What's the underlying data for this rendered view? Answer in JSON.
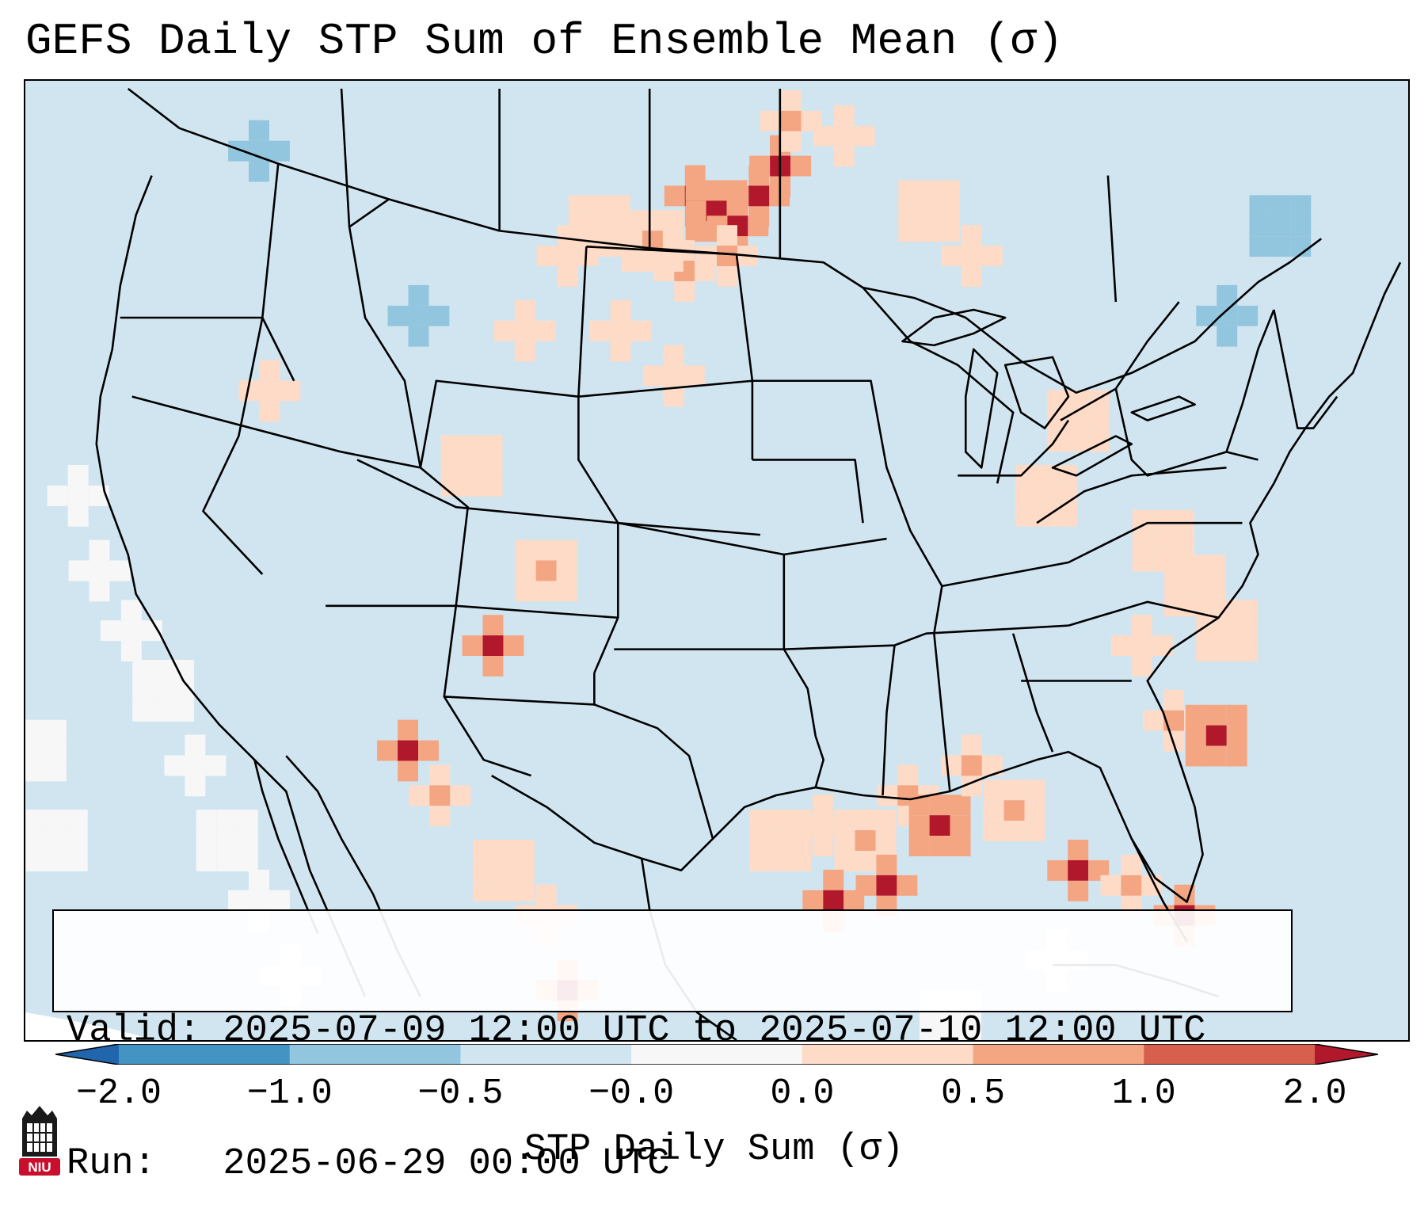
{
  "title": "GEFS Daily STP Sum of Ensemble Mean (σ)",
  "info": {
    "valid": "Valid: 2025-07-09 12:00 UTC to 2025-07-10 12:00 UTC",
    "run": "Run:   2025-06-29 00:00 UTC"
  },
  "colorbar": {
    "label": "STP Daily Sum (σ)",
    "ticks": [
      "−2.0",
      "−1.0",
      "−0.5",
      "−0.0",
      "0.0",
      "0.5",
      "1.0",
      "2.0"
    ],
    "colors": [
      "#2166ac",
      "#4393c3",
      "#92c5de",
      "#d1e5f0",
      "#f7f7f7",
      "#fddbc7",
      "#f4a582",
      "#d6604d",
      "#b2182b"
    ]
  },
  "logo": {
    "text": "NIU",
    "color": "#c8102e"
  },
  "map": {
    "land_fill": "#d1e5f0",
    "outline_color": "#000000",
    "anomaly_cells": [
      {
        "lon": -97.0,
        "lat": 48.5,
        "level": 3
      },
      {
        "lon": -96.0,
        "lat": 48.0,
        "level": 3
      },
      {
        "lon": -95.0,
        "lat": 47.5,
        "level": 3
      },
      {
        "lon": -94.0,
        "lat": 48.5,
        "level": 3
      },
      {
        "lon": -93.0,
        "lat": 49.5,
        "level": 3
      },
      {
        "lon": -95.5,
        "lat": 46.5,
        "level": 2
      },
      {
        "lon": -97.5,
        "lat": 46.0,
        "level": 2
      },
      {
        "lon": -99.0,
        "lat": 47.0,
        "level": 2
      },
      {
        "lon": -101.5,
        "lat": 47.5,
        "level": 1
      },
      {
        "lon": -103.0,
        "lat": 46.5,
        "level": 1
      },
      {
        "lon": -92.5,
        "lat": 51.0,
        "level": 2
      },
      {
        "lon": -90.0,
        "lat": 50.5,
        "level": 1
      },
      {
        "lon": -86.0,
        "lat": 48.0,
        "level": 1
      },
      {
        "lon": -84.0,
        "lat": 46.5,
        "level": 1
      },
      {
        "lon": -100.5,
        "lat": 44.0,
        "level": 1
      },
      {
        "lon": -98.0,
        "lat": 42.5,
        "level": 1
      },
      {
        "lon": -75.0,
        "lat": 37.0,
        "level": 1
      },
      {
        "lon": -73.5,
        "lat": 35.5,
        "level": 1
      },
      {
        "lon": -72.0,
        "lat": 34.0,
        "level": 1
      },
      {
        "lon": -76.0,
        "lat": 33.5,
        "level": 1
      },
      {
        "lon": -74.5,
        "lat": 31.0,
        "level": 2
      },
      {
        "lon": -72.5,
        "lat": 30.5,
        "level": 3
      },
      {
        "lon": -87.0,
        "lat": 28.5,
        "level": 2
      },
      {
        "lon": -85.5,
        "lat": 27.5,
        "level": 3
      },
      {
        "lon": -89.0,
        "lat": 27.0,
        "level": 2
      },
      {
        "lon": -91.0,
        "lat": 27.5,
        "level": 1
      },
      {
        "lon": -93.0,
        "lat": 27.0,
        "level": 1
      },
      {
        "lon": -88.0,
        "lat": 25.5,
        "level": 3
      },
      {
        "lon": -90.5,
        "lat": 25.0,
        "level": 3
      },
      {
        "lon": -84.0,
        "lat": 29.5,
        "level": 2
      },
      {
        "lon": -82.0,
        "lat": 28.0,
        "level": 2
      },
      {
        "lon": -79.0,
        "lat": 26.0,
        "level": 3
      },
      {
        "lon": -76.5,
        "lat": 25.5,
        "level": 2
      },
      {
        "lon": -74.0,
        "lat": 24.5,
        "level": 3
      },
      {
        "lon": -110.5,
        "lat": 30.0,
        "level": 3
      },
      {
        "lon": -109.0,
        "lat": 28.5,
        "level": 2
      },
      {
        "lon": -106.0,
        "lat": 26.0,
        "level": 1
      },
      {
        "lon": -104.0,
        "lat": 24.5,
        "level": 1
      },
      {
        "lon": -103.0,
        "lat": 22.0,
        "level": 3
      },
      {
        "lon": -106.5,
        "lat": 33.5,
        "level": 3
      },
      {
        "lon": -104.0,
        "lat": 36.0,
        "level": 2
      },
      {
        "lon": -107.5,
        "lat": 39.5,
        "level": 1
      },
      {
        "lon": -117.0,
        "lat": 42.0,
        "level": 1
      },
      {
        "lon": -105.0,
        "lat": 44.0,
        "level": 1
      },
      {
        "lon": -80.5,
        "lat": 38.5,
        "level": 1
      },
      {
        "lon": -79.0,
        "lat": 41.0,
        "level": 1
      }
    ],
    "negative_cells": [
      {
        "lon": -117.5,
        "lat": 50.0,
        "level": -1
      },
      {
        "lon": -110.0,
        "lat": 44.5,
        "level": -1
      },
      {
        "lon": -69.5,
        "lat": 47.5,
        "level": -1
      },
      {
        "lon": -72.0,
        "lat": 44.5,
        "level": -1
      }
    ],
    "neutral_cells": [
      {
        "lon": -126.0,
        "lat": 38.5
      },
      {
        "lon": -125.0,
        "lat": 36.0
      },
      {
        "lon": -123.5,
        "lat": 34.0
      },
      {
        "lon": -122.0,
        "lat": 32.0
      },
      {
        "lon": -120.5,
        "lat": 29.5
      },
      {
        "lon": -119.0,
        "lat": 27.0
      },
      {
        "lon": -117.5,
        "lat": 25.0
      },
      {
        "lon": -116.0,
        "lat": 22.5
      },
      {
        "lon": -128.0,
        "lat": 30.0
      },
      {
        "lon": -127.0,
        "lat": 27.0
      },
      {
        "lon": -85.0,
        "lat": 21.0
      },
      {
        "lon": -80.0,
        "lat": 23.0
      }
    ]
  }
}
